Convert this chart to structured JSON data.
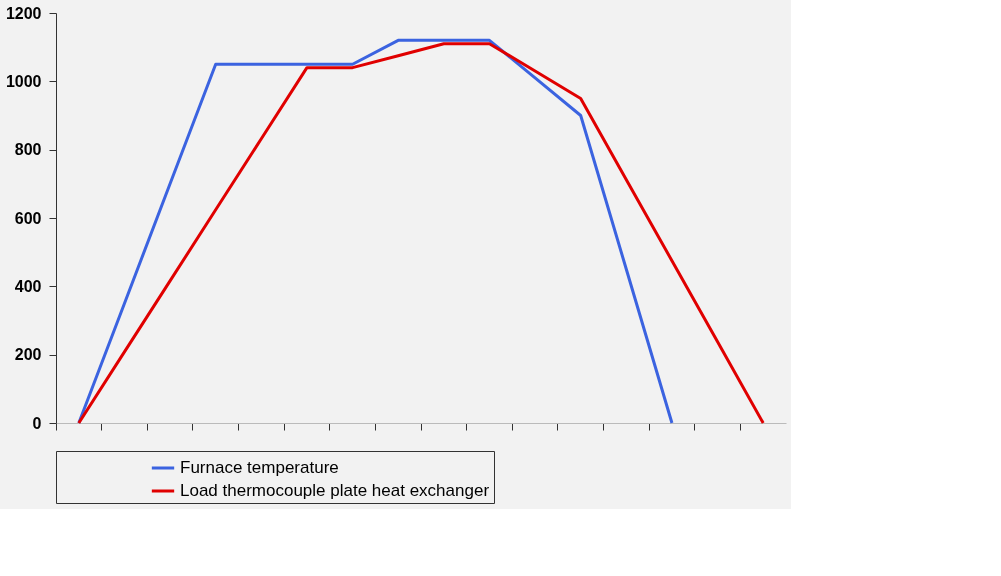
{
  "chart_data": {
    "type": "line",
    "categories": [
      null,
      null,
      null,
      null,
      null,
      null,
      null,
      null,
      null,
      null,
      null,
      null,
      null,
      null,
      null,
      null
    ],
    "series": [
      {
        "name": "Furnace temperature",
        "color": "#3b63e0",
        "values": [
          0,
          350,
          700,
          1050,
          1050,
          1050,
          1050,
          1120,
          1120,
          1120,
          1010,
          900,
          450,
          0,
          null,
          null
        ]
      },
      {
        "name": "Load thermocouple plate heat exchanger",
        "color": "#e00000",
        "values": [
          0,
          208,
          416,
          624,
          832,
          1040,
          1040,
          1075,
          1110,
          1110,
          1030,
          950,
          712,
          475,
          238,
          0
        ]
      }
    ],
    "ylim": [
      0,
      1200
    ],
    "yticks": [
      0,
      200,
      400,
      600,
      800,
      1000,
      1200
    ],
    "grid": false,
    "legend": "bottom",
    "tick_labels": "y",
    "marker": "none",
    "line_style": "solid"
  }
}
